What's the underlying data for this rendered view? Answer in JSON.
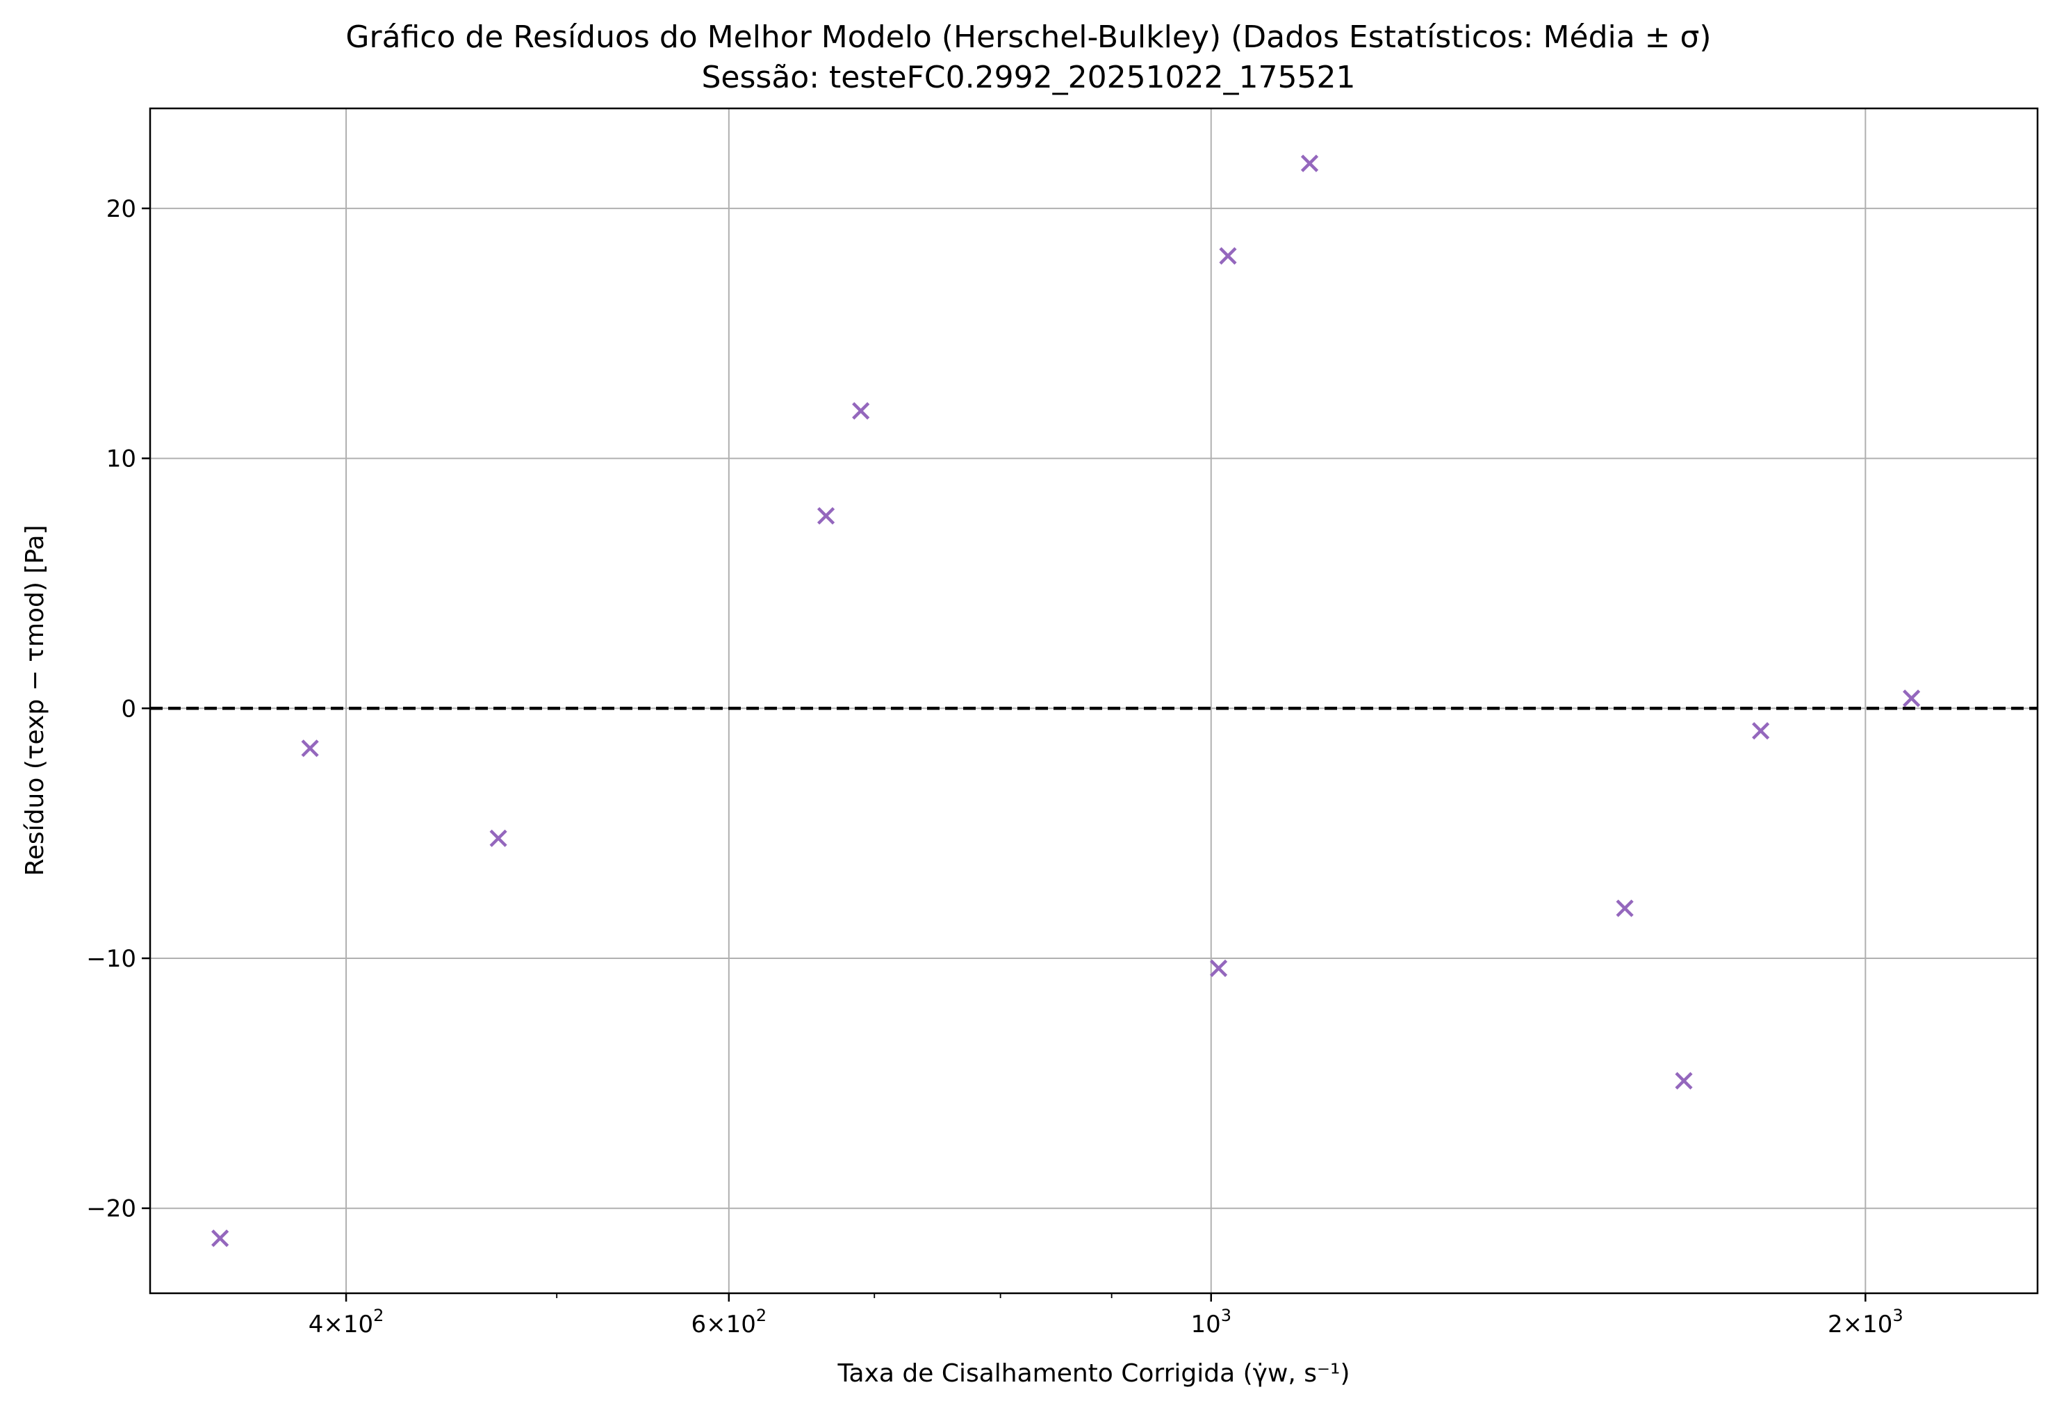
{
  "chart_data": {
    "type": "scatter",
    "title": "Gráfico de Resíduos do Melhor Modelo (Herschel-Bulkley) (Dados Estatísticos: Média ± σ)",
    "subtitle": "Sessão: testeFC0.2992_20251022_175521",
    "xlabel": "Taxa de Cisalhamento Corrigida (γ̇w, s⁻¹)",
    "ylabel": "Resíduo (τexp − τmod) [Pa]",
    "x_scale": "log",
    "xlim": [
      325,
      2400
    ],
    "ylim": [
      -23.4,
      24.0
    ],
    "x_ticks": [
      {
        "value": 400,
        "base": "4×10",
        "exp": "2"
      },
      {
        "value": 600,
        "base": "6×10",
        "exp": "2"
      },
      {
        "value": 1000,
        "base": "10",
        "exp": "3"
      },
      {
        "value": 2000,
        "base": "2×10",
        "exp": "3"
      }
    ],
    "x_minor_ticks": [
      500,
      700,
      800,
      900
    ],
    "y_ticks": [
      {
        "value": -20,
        "label": "−20"
      },
      {
        "value": -10,
        "label": "−10"
      },
      {
        "value": 0,
        "label": "0"
      },
      {
        "value": 10,
        "label": "10"
      },
      {
        "value": 20,
        "label": "20"
      }
    ],
    "grid": true,
    "reference_line": {
      "y": 0,
      "style": "dashed",
      "color": "#000000"
    },
    "marker": "x",
    "marker_color": "#9467bd",
    "points": [
      {
        "x": 350,
        "y": -21.2
      },
      {
        "x": 385,
        "y": -1.6
      },
      {
        "x": 470,
        "y": -5.2
      },
      {
        "x": 665,
        "y": 7.7
      },
      {
        "x": 690,
        "y": 11.9
      },
      {
        "x": 1008,
        "y": -10.4
      },
      {
        "x": 1018,
        "y": 18.1
      },
      {
        "x": 1110,
        "y": 21.8
      },
      {
        "x": 1550,
        "y": -8.0
      },
      {
        "x": 1650,
        "y": -14.9
      },
      {
        "x": 1790,
        "y": -0.9
      },
      {
        "x": 2100,
        "y": 0.4
      }
    ]
  }
}
